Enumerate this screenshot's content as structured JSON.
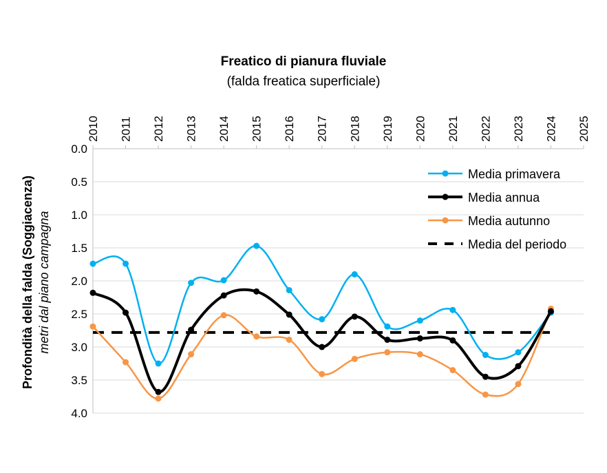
{
  "chart_data": {
    "type": "line",
    "title": "Freatico di pianura fluviale",
    "subtitle": "(falda freatica superficiale)",
    "ylabel": "Profondità della falda (Soggiacenza)",
    "ylabel_sub": "metri dal piano campagna",
    "y_reversed": true,
    "ylim": [
      0,
      4
    ],
    "yticks": [
      "0.0",
      "0.5",
      "1.0",
      "1.5",
      "2.0",
      "2.5",
      "3.0",
      "3.5",
      "4.0"
    ],
    "xlim": [
      2010,
      2025
    ],
    "xticks": [
      "2010",
      "2011",
      "2012",
      "2013",
      "2014",
      "2015",
      "2016",
      "2017",
      "2018",
      "2019",
      "2020",
      "2021",
      "2022",
      "2023",
      "2024",
      "2025"
    ],
    "x_axis_position": "top",
    "grid": "horizontal",
    "legend_position": "top-right",
    "x": [
      2010,
      2011,
      2012,
      2013,
      2014,
      2015,
      2016,
      2017,
      2018,
      2019,
      2020,
      2021,
      2022,
      2023,
      2024
    ],
    "series": [
      {
        "name": "Media primavera",
        "color": "#00B0F0",
        "values": [
          1.74,
          1.74,
          3.25,
          2.03,
          1.99,
          1.47,
          2.14,
          2.58,
          1.9,
          2.69,
          2.6,
          2.44,
          3.12,
          3.08,
          2.48
        ]
      },
      {
        "name": "Media annua",
        "color": "#000000",
        "values": [
          2.18,
          2.48,
          3.68,
          2.74,
          2.22,
          2.16,
          2.51,
          3.0,
          2.54,
          2.89,
          2.87,
          2.9,
          3.45,
          3.29,
          2.46
        ]
      },
      {
        "name": "Media autunno",
        "color": "#F79646",
        "values": [
          2.69,
          3.23,
          3.78,
          3.11,
          2.52,
          2.84,
          2.89,
          3.41,
          3.18,
          3.08,
          3.11,
          3.35,
          3.72,
          3.56,
          2.42
        ]
      },
      {
        "name": "Media del periodo",
        "color": "#000000",
        "dashed": true,
        "value": 2.78
      }
    ]
  }
}
